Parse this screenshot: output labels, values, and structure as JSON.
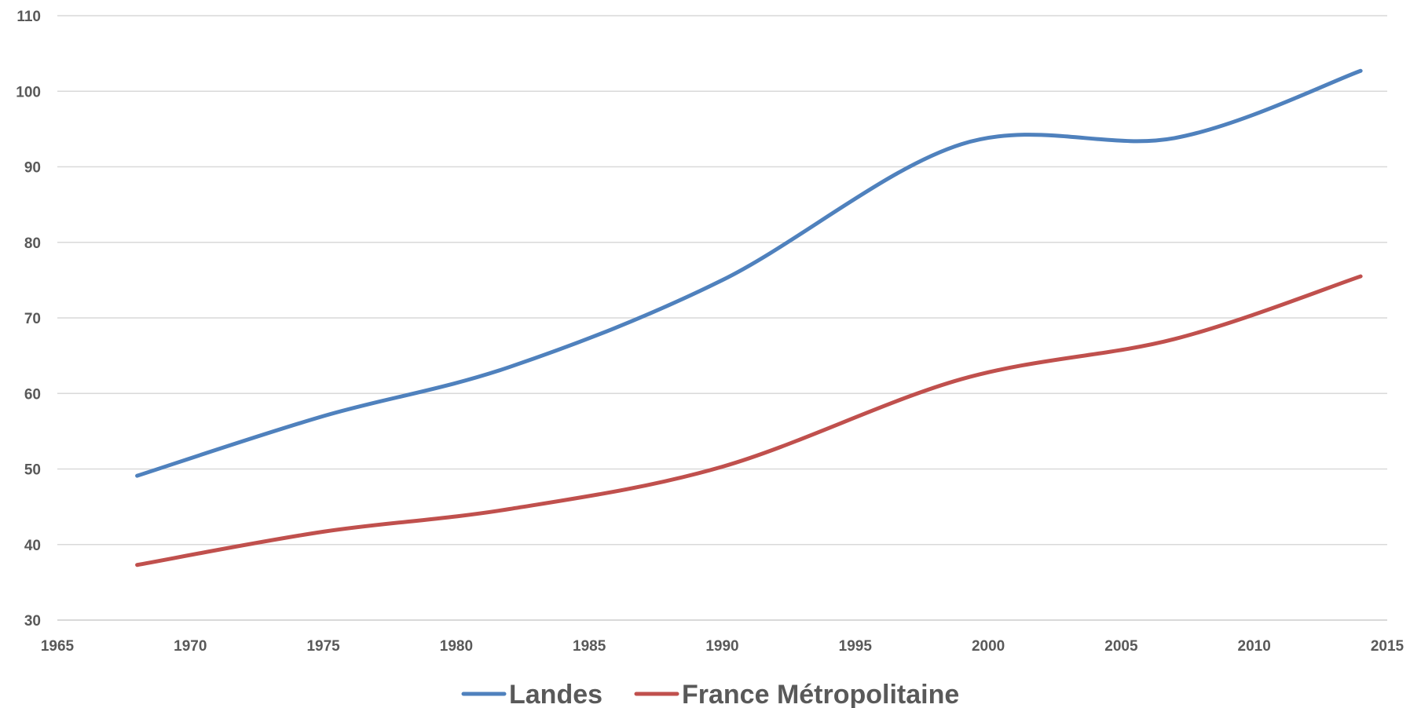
{
  "chart_data": {
    "type": "line",
    "title": "",
    "xlabel": "",
    "ylabel": "",
    "xlim": [
      1965,
      2015
    ],
    "ylim": [
      30,
      110
    ],
    "x_ticks": [
      1965,
      1970,
      1975,
      1980,
      1985,
      1990,
      1995,
      2000,
      2005,
      2010,
      2015
    ],
    "y_ticks": [
      30,
      40,
      50,
      60,
      70,
      80,
      90,
      100,
      110
    ],
    "grid": true,
    "smooth": true,
    "legend_position": "bottom",
    "series": [
      {
        "name": "Landes",
        "color": "#4f81bd",
        "x": [
          1968,
          1975,
          1982,
          1990,
          1999,
          2007,
          2014
        ],
        "y": [
          49.1,
          57.0,
          63.5,
          75.0,
          93.0,
          93.8,
          102.7
        ]
      },
      {
        "name": "France Métropolitaine",
        "color": "#c0504d",
        "x": [
          1968,
          1975,
          1982,
          1990,
          1999,
          2007,
          2014
        ],
        "y": [
          37.3,
          41.7,
          44.7,
          50.3,
          61.9,
          67.2,
          75.5
        ]
      }
    ]
  }
}
